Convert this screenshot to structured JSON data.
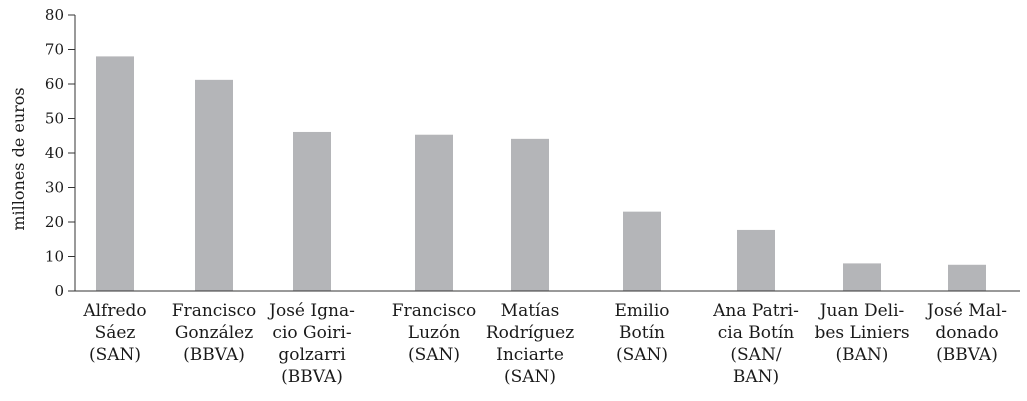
{
  "chart_data": {
    "type": "bar",
    "title": "",
    "xlabel": "",
    "ylabel": "millones de euros",
    "ylim": [
      0,
      80
    ],
    "yticks": [
      0,
      10,
      20,
      30,
      40,
      50,
      60,
      70,
      80
    ],
    "grid": false,
    "bar_color": "#b4b5b8",
    "axis_color": "#333333",
    "categories": [
      [
        "Alfredo",
        "Sáez",
        "(SAN)"
      ],
      [
        "Francisco",
        "González",
        "(BBVA)"
      ],
      [
        "José Igna-",
        "cio Goiri-",
        "golzarri",
        "(BBVA)"
      ],
      [
        "Francisco",
        "Luzón",
        "(SAN)"
      ],
      [
        "Matías",
        "Rodríguez",
        "Inciarte",
        "(SAN)"
      ],
      [
        "Emilio",
        "Botín",
        "(SAN)"
      ],
      [
        "Ana Patri-",
        "cia Botín",
        "(SAN/",
        "BAN)"
      ],
      [
        "Juan Deli-",
        "bes Liniers",
        "(BAN)"
      ],
      [
        "José Mal-",
        "donado",
        "(BBVA)"
      ]
    ],
    "values": [
      68.0,
      61.2,
      46.1,
      45.3,
      44.1,
      23.0,
      17.7,
      8.0,
      7.6
    ]
  }
}
